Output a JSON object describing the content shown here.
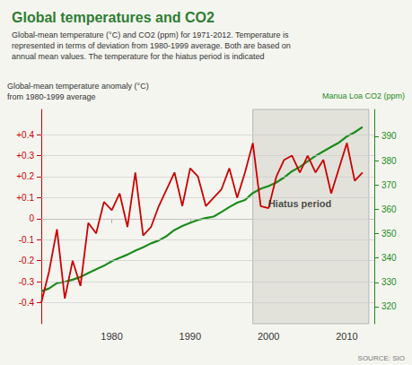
{
  "chart_data": {
    "type": "line",
    "title": "Global temperatures and CO2",
    "subtitle": "Global-mean temperature (°C) and CO2 (ppm) for 1971-2012. Temperature is\nrepresented in terms of deviation from 1980-1999 average. Both are based on\nannual mean values. The temperature for the hiatus period is indicated",
    "ylabel": "Global-mean temperature anomaly (°C)\nfrom 1980-1999 average",
    "y2label": "Manua Loa CO2 (ppm)",
    "source": "SOURCE: SIO",
    "x": [
      1971,
      1972,
      1973,
      1974,
      1975,
      1976,
      1977,
      1978,
      1979,
      1980,
      1981,
      1982,
      1983,
      1984,
      1985,
      1986,
      1987,
      1988,
      1989,
      1990,
      1991,
      1992,
      1993,
      1994,
      1995,
      1996,
      1997,
      1998,
      1999,
      2000,
      2001,
      2002,
      2003,
      2004,
      2005,
      2006,
      2007,
      2008,
      2009,
      2010,
      2011,
      2012
    ],
    "series": [
      {
        "color": "#cc0000",
        "values": [
          -0.4,
          -0.25,
          -0.05,
          -0.38,
          -0.2,
          -0.32,
          -0.02,
          -0.07,
          0.08,
          0.04,
          0.12,
          -0.04,
          0.22,
          -0.08,
          -0.04,
          0.06,
          0.14,
          0.22,
          0.06,
          0.24,
          0.2,
          0.06,
          0.1,
          0.14,
          0.24,
          0.1,
          0.22,
          0.36,
          0.06,
          0.05,
          0.2,
          0.28,
          0.3,
          0.22,
          0.3,
          0.22,
          0.28,
          0.12,
          0.24,
          0.36,
          0.18,
          0.22
        ]
      },
      {
        "color": "#1a8c1a",
        "axis": "y2",
        "values": [
          326.3,
          327.5,
          329.7,
          330.2,
          331.1,
          332.2,
          333.8,
          335.4,
          336.8,
          338.7,
          340.1,
          341.4,
          343.0,
          344.4,
          346.0,
          347.2,
          349.0,
          351.5,
          353.1,
          354.4,
          355.6,
          356.4,
          357.0,
          358.9,
          360.9,
          362.7,
          363.8,
          366.7,
          368.4,
          369.5,
          371.0,
          373.1,
          375.6,
          377.4,
          379.7,
          381.9,
          383.8,
          385.6,
          387.4,
          389.9,
          391.6,
          393.8
        ]
      }
    ],
    "xlim": [
      1971,
      2013.5
    ],
    "xticks": [
      1980,
      1990,
      2000,
      2010
    ],
    "ylim": [
      -0.5,
      0.52
    ],
    "yticks": [
      -0.4,
      -0.3,
      -0.2,
      -0.1,
      0,
      {
        "value": 0.1,
        "label": "+0.1"
      },
      {
        "value": 0.2,
        "label": "+0.2"
      },
      {
        "value": 0.3,
        "label": "+0.3"
      },
      {
        "value": 0.4,
        "label": "+0.4"
      }
    ],
    "y2lim": [
      313,
      401
    ],
    "y2ticks": [
      320,
      330,
      340,
      350,
      360,
      370,
      380,
      390
    ],
    "grid": true,
    "shaded": {
      "from": 1998,
      "to": 2012.8,
      "color": "#e2e2da"
    },
    "annotations": [
      {
        "text": "Hiatus period",
        "x": 2004.0,
        "y": 0.07
      }
    ]
  }
}
